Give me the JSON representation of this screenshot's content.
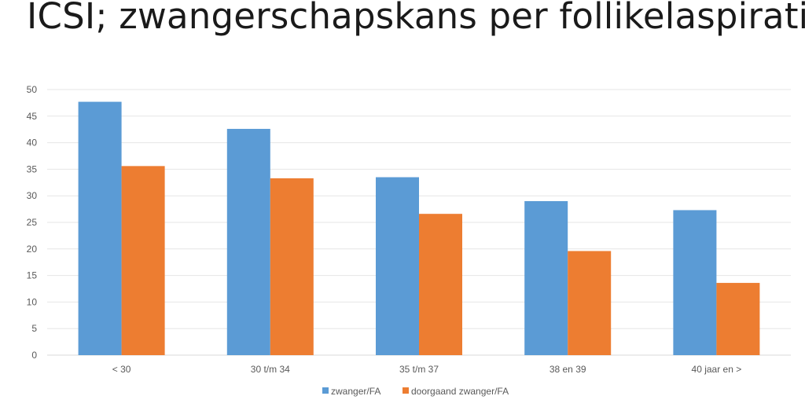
{
  "slide": {
    "title": "ICSI; zwangerschapskans per follikelaspiratie"
  },
  "chart_data": {
    "type": "bar",
    "title": "ICSI; zwangerschapskans per follikelaspiratie",
    "xlabel": "",
    "ylabel": "",
    "ylim": [
      0,
      50
    ],
    "yticks": [
      0,
      5,
      10,
      15,
      20,
      25,
      30,
      35,
      40,
      45,
      50
    ],
    "grid": true,
    "legend_position": "bottom",
    "categories": [
      "< 30",
      "30 t/m 34",
      "35 t/m 37",
      "38 en 39",
      "40 jaar en >"
    ],
    "series": [
      {
        "name": "zwanger/FA",
        "color": "#5b9bd5",
        "values": [
          47.7,
          42.6,
          33.5,
          29.0,
          27.3
        ]
      },
      {
        "name": "doorgaand zwanger/FA",
        "color": "#ed7d31",
        "values": [
          35.6,
          33.3,
          26.6,
          19.6,
          13.6
        ]
      }
    ]
  }
}
